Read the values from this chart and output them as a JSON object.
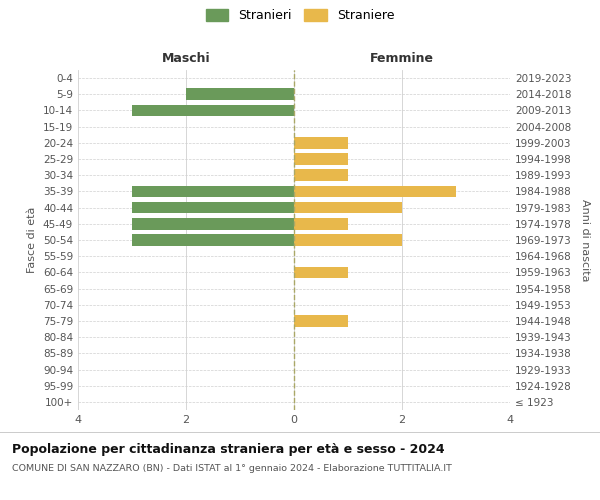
{
  "age_groups": [
    "100+",
    "95-99",
    "90-94",
    "85-89",
    "80-84",
    "75-79",
    "70-74",
    "65-69",
    "60-64",
    "55-59",
    "50-54",
    "45-49",
    "40-44",
    "35-39",
    "30-34",
    "25-29",
    "20-24",
    "15-19",
    "10-14",
    "5-9",
    "0-4"
  ],
  "birth_years": [
    "≤ 1923",
    "1924-1928",
    "1929-1933",
    "1934-1938",
    "1939-1943",
    "1944-1948",
    "1949-1953",
    "1954-1958",
    "1959-1963",
    "1964-1968",
    "1969-1973",
    "1974-1978",
    "1979-1983",
    "1984-1988",
    "1989-1993",
    "1994-1998",
    "1999-2003",
    "2004-2008",
    "2009-2013",
    "2014-2018",
    "2019-2023"
  ],
  "males": [
    0,
    0,
    0,
    0,
    0,
    0,
    0,
    0,
    0,
    0,
    3,
    3,
    3,
    3,
    0,
    0,
    0,
    0,
    3,
    2,
    0
  ],
  "females": [
    0,
    0,
    0,
    0,
    0,
    1,
    0,
    0,
    1,
    0,
    2,
    1,
    2,
    3,
    1,
    1,
    1,
    0,
    0,
    0,
    0
  ],
  "male_color": "#6a9a5a",
  "female_color": "#e8b84b",
  "title": "Popolazione per cittadinanza straniera per età e sesso - 2024",
  "subtitle": "COMUNE DI SAN NAZZARO (BN) - Dati ISTAT al 1° gennaio 2024 - Elaborazione TUTTITALIA.IT",
  "legend_male": "Stranieri",
  "legend_female": "Straniere",
  "header_left": "Maschi",
  "header_right": "Femmine",
  "ylabel_left": "Fasce di età",
  "ylabel_right": "Anni di nascita",
  "xlim": 4,
  "bg_color": "#ffffff",
  "grid_color": "#d0d0d0",
  "tick_color": "#555555",
  "centerline_color": "#aaaaaa"
}
